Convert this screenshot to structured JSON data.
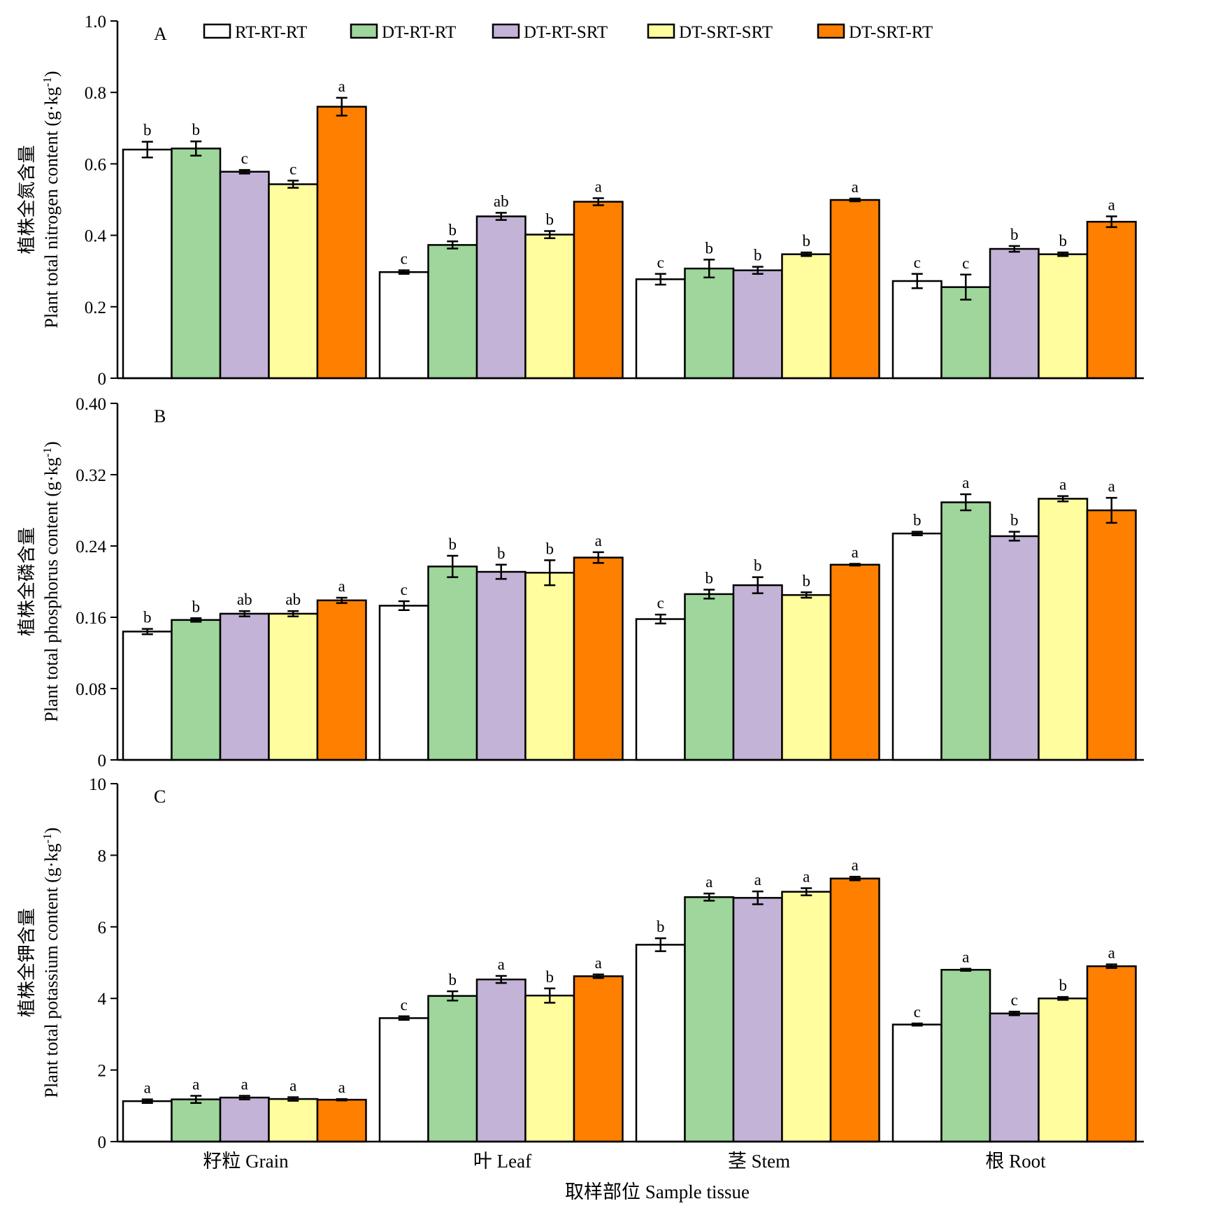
{
  "legend": [
    {
      "name": "RT-RT-RT",
      "color": "#ffffff"
    },
    {
      "name": "DT-RT-RT",
      "color": "#9ed69b"
    },
    {
      "name": "DT-RT-SRT",
      "color": "#c3b3d6"
    },
    {
      "name": "DT-SRT-SRT",
      "color": "#fffd9e"
    },
    {
      "name": "DT-SRT-RT",
      "color": "#ff7f00"
    }
  ],
  "categories": [
    "籽粒 Grain",
    "叶 Leaf",
    "茎 Stem",
    "根 Root"
  ],
  "xlabel": "取样部位 Sample tissue",
  "chart_data": [
    {
      "type": "bar",
      "panel": "A",
      "ylabel_cn": "植株全氮含量",
      "ylabel_en": "Plant total nitrogen content (g·kg",
      "ylabel_sup": "-1",
      "ylabel_tail": ")",
      "ylim": [
        0,
        1.0
      ],
      "yticks": [
        "0",
        "0.2",
        "0.4",
        "0.6",
        "0.8",
        "1.0"
      ],
      "ytick_values": [
        0,
        0.2,
        0.4,
        0.6,
        0.8,
        1.0
      ],
      "series": [
        {
          "name": "RT-RT-RT",
          "values": [
            0.64,
            0.297,
            0.277,
            0.272
          ],
          "errors": [
            0.022,
            0.005,
            0.015,
            0.02
          ],
          "letters": [
            "b",
            "c",
            "c",
            "c"
          ]
        },
        {
          "name": "DT-RT-RT",
          "values": [
            0.643,
            0.373,
            0.307,
            0.255
          ],
          "errors": [
            0.02,
            0.01,
            0.025,
            0.035
          ],
          "letters": [
            "b",
            "b",
            "b",
            "c"
          ]
        },
        {
          "name": "DT-RT-SRT",
          "values": [
            0.578,
            0.453,
            0.302,
            0.362
          ],
          "errors": [
            0.005,
            0.01,
            0.01,
            0.008
          ],
          "letters": [
            "c",
            "ab",
            "b",
            "b"
          ]
        },
        {
          "name": "DT-SRT-SRT",
          "values": [
            0.543,
            0.402,
            0.347,
            0.347
          ],
          "errors": [
            0.01,
            0.01,
            0.005,
            0.005
          ],
          "letters": [
            "c",
            "b",
            "b",
            "b"
          ]
        },
        {
          "name": "DT-SRT-RT",
          "values": [
            0.76,
            0.494,
            0.499,
            0.438
          ],
          "errors": [
            0.025,
            0.01,
            0.004,
            0.015
          ],
          "letters": [
            "a",
            "a",
            "a",
            "a"
          ]
        }
      ]
    },
    {
      "type": "bar",
      "panel": "B",
      "ylabel_cn": "植株全磷含量",
      "ylabel_en": "Plant total phosphorus content (g·kg",
      "ylabel_sup": "-1",
      "ylabel_tail": ")",
      "ylim": [
        0,
        0.4
      ],
      "yticks": [
        "0",
        "0.08",
        "0.16",
        "0.24",
        "0.32",
        "0.40"
      ],
      "ytick_values": [
        0,
        0.08,
        0.16,
        0.24,
        0.32,
        0.4
      ],
      "series": [
        {
          "name": "RT-RT-RT",
          "values": [
            0.144,
            0.173,
            0.158,
            0.254
          ],
          "errors": [
            0.003,
            0.005,
            0.005,
            0.002
          ],
          "letters": [
            "b",
            "c",
            "c",
            "b"
          ]
        },
        {
          "name": "DT-RT-RT",
          "values": [
            0.157,
            0.217,
            0.186,
            0.289
          ],
          "errors": [
            0.002,
            0.012,
            0.005,
            0.009
          ],
          "letters": [
            "b",
            "b",
            "b",
            "a"
          ]
        },
        {
          "name": "DT-RT-SRT",
          "values": [
            0.164,
            0.211,
            0.196,
            0.251
          ],
          "errors": [
            0.003,
            0.008,
            0.009,
            0.005
          ],
          "letters": [
            "ab",
            "b",
            "b",
            "b"
          ]
        },
        {
          "name": "DT-SRT-SRT",
          "values": [
            0.164,
            0.21,
            0.185,
            0.293
          ],
          "errors": [
            0.003,
            0.014,
            0.003,
            0.003
          ],
          "letters": [
            "ab",
            "b",
            "b",
            "a"
          ]
        },
        {
          "name": "DT-SRT-RT",
          "values": [
            0.179,
            0.227,
            0.219,
            0.28
          ],
          "errors": [
            0.003,
            0.006,
            0.001,
            0.014
          ],
          "letters": [
            "a",
            "a",
            "a",
            "a"
          ]
        }
      ]
    },
    {
      "type": "bar",
      "panel": "C",
      "ylabel_cn": "植株全钾含量",
      "ylabel_en": "Plant total potassium content (g·kg",
      "ylabel_sup": "-1",
      "ylabel_tail": ")",
      "ylim": [
        0,
        10
      ],
      "yticks": [
        "0",
        "2",
        "4",
        "6",
        "8",
        "10"
      ],
      "ytick_values": [
        0,
        2,
        4,
        6,
        8,
        10
      ],
      "series": [
        {
          "name": "RT-RT-RT",
          "values": [
            1.13,
            3.45,
            5.5,
            3.27
          ],
          "errors": [
            0.05,
            0.05,
            0.18,
            0.03
          ],
          "letters": [
            "a",
            "c",
            "b",
            "c"
          ]
        },
        {
          "name": "DT-RT-RT",
          "values": [
            1.18,
            4.07,
            6.83,
            4.8
          ],
          "errors": [
            0.1,
            0.13,
            0.1,
            0.03
          ],
          "letters": [
            "a",
            "b",
            "a",
            "a"
          ]
        },
        {
          "name": "DT-RT-SRT",
          "values": [
            1.23,
            4.53,
            6.81,
            3.58
          ],
          "errors": [
            0.05,
            0.1,
            0.18,
            0.05
          ],
          "letters": [
            "a",
            "a",
            "a",
            "c"
          ]
        },
        {
          "name": "DT-SRT-SRT",
          "values": [
            1.19,
            4.08,
            6.98,
            4.0
          ],
          "errors": [
            0.05,
            0.2,
            0.1,
            0.04
          ],
          "letters": [
            "a",
            "b",
            "a",
            "b"
          ]
        },
        {
          "name": "DT-SRT-RT",
          "values": [
            1.17,
            4.62,
            7.35,
            4.9
          ],
          "errors": [
            0.02,
            0.05,
            0.05,
            0.05
          ],
          "letters": [
            "a",
            "a",
            "a",
            "a"
          ]
        }
      ]
    }
  ]
}
